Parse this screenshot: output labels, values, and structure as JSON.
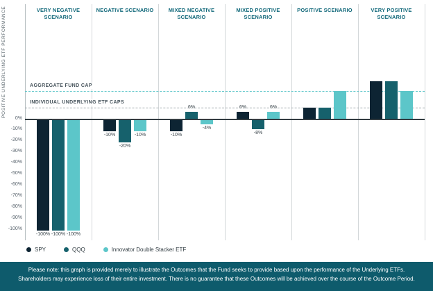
{
  "chart_data": {
    "type": "bar",
    "title": "",
    "ylabel": "POSITIVE UNDERLYING ETF PERFORMANCE",
    "ylim": [
      -100,
      38
    ],
    "y_tick_labels": [
      "0%",
      "-10%",
      "-20%",
      "-30%",
      "-40%",
      "-50%",
      "-60%",
      "-70%",
      "-80%",
      "-90%",
      "-100%"
    ],
    "series": [
      "SPY",
      "QQQ",
      "Innovator Double Stacker ETF"
    ],
    "colors": {
      "spy": "#0d2433",
      "qqq": "#16616c",
      "stacker": "#5cc6c9"
    },
    "scenarios": [
      {
        "label": "VERY NEGATIVE SCENARIO",
        "values": [
          -100,
          -100,
          -100
        ],
        "bar_labels": [
          "-100%",
          "-100%",
          "-100%"
        ]
      },
      {
        "label": "NEGATIVE SCENARIO",
        "values": [
          -10,
          -20,
          -10
        ],
        "bar_labels": [
          "-10%",
          "-20%",
          "-10%"
        ]
      },
      {
        "label": "MIXED NEGATIVE SCENARIO",
        "values": [
          -10,
          6,
          -4
        ],
        "bar_labels": [
          "-10%",
          "6%",
          "-4%"
        ]
      },
      {
        "label": "MIXED POSITIVE SCENARIO",
        "values": [
          6,
          -8,
          6
        ],
        "bar_labels": [
          "6%",
          "-8%",
          "6%"
        ]
      },
      {
        "label": "POSITIVE SCENARIO",
        "values": [
          10,
          10,
          25
        ],
        "bar_labels": [
          "",
          "",
          ""
        ]
      },
      {
        "label": "VERY POSITIVE SCENARIO",
        "values": [
          34,
          34,
          25
        ],
        "bar_labels": [
          "",
          "",
          ""
        ]
      }
    ],
    "reference_lines": [
      {
        "label": "AGGREGATE FUND CAP",
        "value": 25,
        "color": "#5cc6c9"
      },
      {
        "label": "INDIVIDUAL UNDERLYING ETF CAPS",
        "value": 10,
        "color": "#9ba4a8"
      }
    ],
    "grid": "vertical-column-separators",
    "legend_position": "bottom-left"
  },
  "legend": {
    "items": [
      {
        "label": "SPY",
        "color": "#0d2433"
      },
      {
        "label": "QQQ",
        "color": "#16616c"
      },
      {
        "label": "Innovator Double Stacker ETF",
        "color": "#5cc6c9"
      }
    ]
  },
  "footer": {
    "line1": "Please note: this graph is provided merely to illustrate the Outcomes that the Fund seeks to provide based upon the performance of the Underlying ETFs.",
    "line2": "Shareholders may experience loss of their entire investment. There is no guarantee that these Outcomes will be achieved over the course of the Outcome Period."
  }
}
